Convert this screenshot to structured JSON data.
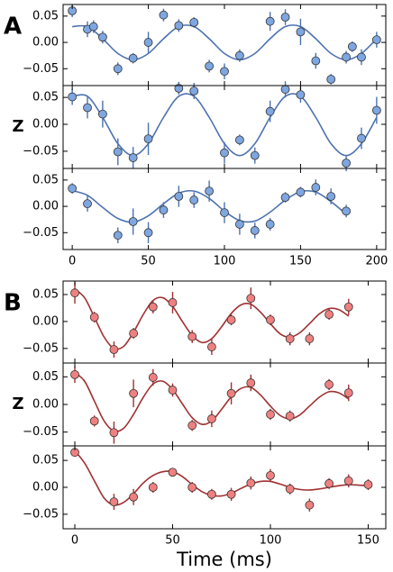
{
  "chart_data": [
    {
      "type": "scatter",
      "panel_label": "A",
      "xlim": [
        -6,
        206
      ],
      "ylim": [
        -0.082,
        0.072
      ],
      "yticks": [
        {
          "value": -0.05,
          "label": "−0.05"
        },
        {
          "value": 0,
          "label": "0.00"
        },
        {
          "value": 0.05,
          "label": "0.05"
        }
      ],
      "color": "#7ea6e0",
      "fit_color": "#4c72b0",
      "x": [
        0,
        10,
        14,
        20,
        30,
        40,
        50,
        60,
        70,
        80,
        90,
        100,
        110,
        130,
        140,
        150,
        160,
        170,
        180,
        184,
        190,
        200
      ],
      "values": [
        0.06,
        0.025,
        0.03,
        0.01,
        -0.05,
        -0.03,
        0.0,
        0.052,
        0.032,
        0.038,
        -0.045,
        -0.055,
        -0.025,
        0.04,
        0.048,
        0.02,
        -0.035,
        -0.07,
        -0.028,
        -0.008,
        -0.028,
        0.005
      ],
      "errors": [
        0.012,
        0.015,
        0.012,
        0.012,
        0.012,
        0.01,
        0.02,
        0.012,
        0.012,
        0.01,
        0.012,
        0.015,
        0.012,
        0.018,
        0.015,
        0.025,
        0.015,
        0.01,
        0.012,
        0.01,
        0.015,
        0.015
      ],
      "fit": {
        "x": [
          0,
          10,
          20,
          30,
          40,
          50,
          60,
          70,
          80,
          90,
          100,
          110,
          120,
          130,
          140,
          150,
          160,
          170,
          180,
          190,
          200
        ],
        "values": [
          0.03,
          0.03,
          0.007,
          -0.021,
          -0.033,
          -0.021,
          0.007,
          0.03,
          0.03,
          0.007,
          -0.021,
          -0.033,
          -0.021,
          0.007,
          0.03,
          0.03,
          0.007,
          -0.021,
          -0.033,
          -0.021,
          0.007
        ]
      }
    },
    {
      "type": "scatter",
      "ylabel": "Z",
      "xlim": [
        -6,
        206
      ],
      "ylim": [
        -0.082,
        0.072
      ],
      "yticks": [
        {
          "value": -0.05,
          "label": "−0.05"
        },
        {
          "value": 0,
          "label": "0.00"
        },
        {
          "value": 0.05,
          "label": "0.05"
        }
      ],
      "color": "#7ea6e0",
      "fit_color": "#4c72b0",
      "x": [
        0,
        10,
        20,
        30,
        40,
        50,
        70,
        80,
        100,
        110,
        120,
        130,
        140,
        150,
        180,
        190,
        200
      ],
      "values": [
        0.051,
        0.031,
        0.019,
        -0.051,
        -0.062,
        -0.027,
        0.067,
        0.062,
        -0.053,
        -0.029,
        -0.058,
        0.024,
        0.065,
        0.055,
        -0.072,
        -0.026,
        0.026
      ],
      "errors": [
        0.015,
        0.02,
        0.025,
        0.025,
        0.02,
        0.03,
        0.012,
        0.015,
        0.02,
        0.01,
        0.015,
        0.02,
        0.015,
        0.015,
        0.015,
        0.02,
        0.025
      ],
      "fit": {
        "x": [
          0,
          10,
          20,
          30,
          40,
          50,
          60,
          70,
          80,
          90,
          100,
          110,
          120,
          130,
          140,
          150,
          160,
          170,
          180,
          190,
          200
        ],
        "values": [
          0.052,
          0.052,
          0.013,
          -0.036,
          -0.058,
          -0.036,
          0.013,
          0.052,
          0.052,
          0.013,
          -0.036,
          -0.058,
          -0.036,
          0.013,
          0.052,
          0.052,
          0.013,
          -0.036,
          -0.058,
          -0.036,
          0.013
        ]
      }
    },
    {
      "type": "scatter",
      "xlim": [
        -6,
        206
      ],
      "ylim": [
        -0.082,
        0.072
      ],
      "xticks": [
        0,
        50,
        100,
        150,
        200
      ],
      "yticks": [
        {
          "value": -0.05,
          "label": "−0.05"
        },
        {
          "value": 0,
          "label": "0.00"
        },
        {
          "value": 0.05,
          "label": "0.05"
        }
      ],
      "color": "#7ea6e0",
      "fit_color": "#4c72b0",
      "x": [
        0,
        10,
        30,
        40,
        50,
        60,
        70,
        80,
        90,
        100,
        110,
        120,
        130,
        140,
        150,
        160,
        170,
        180
      ],
      "values": [
        0.034,
        0.005,
        -0.055,
        -0.029,
        -0.05,
        -0.007,
        0.019,
        0.012,
        0.029,
        -0.012,
        -0.034,
        -0.046,
        -0.034,
        0.017,
        0.027,
        0.036,
        0.019,
        -0.009
      ],
      "errors": [
        0.01,
        0.015,
        0.015,
        0.025,
        0.02,
        0.015,
        0.02,
        0.015,
        0.02,
        0.02,
        0.02,
        0.015,
        0.012,
        0.01,
        0.01,
        0.015,
        0.015,
        0.012
      ],
      "fit": {
        "x": [
          0,
          10,
          20,
          30,
          40,
          50,
          60,
          70,
          80,
          90,
          100,
          110,
          120,
          130,
          140,
          150,
          160,
          170,
          180
        ],
        "values": [
          0.03,
          0.021,
          -0.002,
          -0.023,
          -0.03,
          -0.018,
          0.005,
          0.025,
          0.029,
          0.015,
          -0.009,
          -0.027,
          -0.028,
          -0.011,
          0.012,
          0.028,
          0.027,
          0.009,
          -0.015
        ]
      }
    },
    {
      "type": "scatter",
      "panel_label": "B",
      "xlim": [
        -6,
        159
      ],
      "ylim": [
        -0.077,
        0.075
      ],
      "yticks": [
        {
          "value": -0.05,
          "label": "−0.05"
        },
        {
          "value": 0,
          "label": "0.00"
        },
        {
          "value": 0.05,
          "label": "0.05"
        }
      ],
      "color": "#f08080",
      "fit_color": "#a03030",
      "x": [
        0,
        10,
        20,
        30,
        40,
        50,
        60,
        70,
        80,
        90,
        100,
        110,
        120,
        130,
        140
      ],
      "values": [
        0.053,
        0.008,
        -0.052,
        -0.022,
        0.027,
        0.035,
        -0.028,
        -0.047,
        0.003,
        0.043,
        0.003,
        -0.032,
        -0.032,
        0.013,
        0.027
      ],
      "errors": [
        0.02,
        0.01,
        0.015,
        0.01,
        0.012,
        0.02,
        0.012,
        0.015,
        0.01,
        0.02,
        0.01,
        0.012,
        0.012,
        0.01,
        0.015
      ],
      "fit": {
        "x": [
          0,
          5,
          10,
          15,
          20,
          25,
          30,
          35,
          40,
          45,
          50,
          55,
          60,
          65,
          70,
          75,
          80,
          85,
          90,
          95,
          100,
          105,
          110,
          115,
          120,
          125,
          130,
          135,
          140
        ],
        "values": [
          0.06,
          0.044,
          0.008,
          -0.029,
          -0.05,
          -0.046,
          -0.02,
          0.013,
          0.039,
          0.044,
          0.028,
          0.0,
          -0.026,
          -0.039,
          -0.032,
          -0.01,
          0.015,
          0.031,
          0.032,
          0.017,
          -0.004,
          -0.023,
          -0.029,
          -0.021,
          -0.004,
          0.014,
          0.024,
          0.022,
          0.01
        ]
      }
    },
    {
      "type": "scatter",
      "ylabel": "Z",
      "xlim": [
        -6,
        159
      ],
      "ylim": [
        -0.075,
        0.075
      ],
      "yticks": [
        {
          "value": -0.05,
          "label": "−0.05"
        },
        {
          "value": 0,
          "label": "0.00"
        },
        {
          "value": 0.05,
          "label": "0.05"
        }
      ],
      "color": "#f08080",
      "fit_color": "#a03030",
      "x": [
        0,
        10,
        20,
        30,
        40,
        50,
        60,
        70,
        80,
        90,
        100,
        110,
        130,
        140
      ],
      "values": [
        0.054,
        -0.03,
        -0.051,
        0.02,
        0.049,
        0.026,
        -0.038,
        -0.026,
        0.02,
        0.039,
        -0.018,
        -0.021,
        0.036,
        0.021
      ],
      "errors": [
        0.015,
        0.01,
        0.02,
        0.025,
        0.015,
        0.012,
        0.01,
        0.015,
        0.02,
        0.015,
        0.01,
        0.01,
        0.01,
        0.015
      ],
      "fit": {
        "x": [
          0,
          5,
          10,
          15,
          20,
          25,
          30,
          35,
          40,
          45,
          50,
          55,
          60,
          65,
          70,
          75,
          80,
          85,
          90,
          95,
          100,
          105,
          110,
          115,
          120,
          125,
          130,
          135,
          140
        ],
        "values": [
          0.058,
          0.042,
          0.006,
          -0.03,
          -0.048,
          -0.043,
          -0.018,
          0.013,
          0.037,
          0.042,
          0.027,
          0.001,
          -0.024,
          -0.036,
          -0.03,
          -0.009,
          0.014,
          0.029,
          0.031,
          0.017,
          -0.003,
          -0.02,
          -0.026,
          -0.019,
          -0.003,
          0.013,
          0.023,
          0.021,
          0.01
        ]
      }
    },
    {
      "type": "scatter",
      "xlim": [
        -6,
        159
      ],
      "ylim": [
        -0.077,
        0.077
      ],
      "xticks": [
        0,
        50,
        100,
        150
      ],
      "xlabel": "Time (ms)",
      "yticks": [
        {
          "value": -0.05,
          "label": "−0.05"
        },
        {
          "value": 0,
          "label": "0.00"
        },
        {
          "value": 0.05,
          "label": "0.05"
        }
      ],
      "color": "#f08080",
      "fit_color": "#a03030",
      "x": [
        0,
        20,
        30,
        40,
        50,
        60,
        70,
        80,
        90,
        100,
        110,
        120,
        130,
        140,
        150
      ],
      "values": [
        0.065,
        -0.027,
        -0.018,
        0.0,
        0.028,
        0.0,
        -0.013,
        -0.013,
        0.008,
        0.022,
        -0.003,
        -0.033,
        0.007,
        0.012,
        0.005
      ],
      "errors": [
        0.005,
        0.015,
        0.015,
        0.01,
        0.005,
        0.01,
        0.01,
        0.012,
        0.012,
        0.012,
        0.01,
        0.012,
        0.01,
        0.012,
        0.01
      ],
      "fit": {
        "x": [
          0,
          5,
          10,
          15,
          20,
          25,
          30,
          35,
          40,
          45,
          50,
          55,
          60,
          65,
          70,
          75,
          80,
          85,
          90,
          95,
          100,
          105,
          110,
          115,
          120,
          125,
          130,
          135,
          140,
          145,
          150
        ],
        "values": [
          0.068,
          0.045,
          0.012,
          -0.02,
          -0.033,
          -0.028,
          -0.012,
          0.008,
          0.022,
          0.029,
          0.029,
          0.02,
          0.005,
          -0.008,
          -0.015,
          -0.016,
          -0.011,
          -0.002,
          0.006,
          0.011,
          0.011,
          0.006,
          0.0,
          -0.004,
          -0.005,
          -0.003,
          0.0,
          0.003,
          0.005,
          0.004,
          0.003
        ]
      }
    }
  ]
}
